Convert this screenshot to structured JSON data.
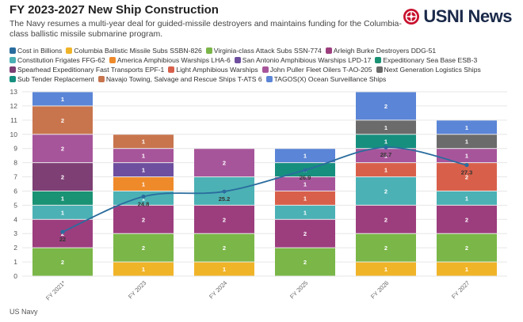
{
  "title": "FY 2023-2027 New Ship Construction",
  "subtitle": "The Navy resumes a multi-year deal for guided-missile destroyers and maintains funding for the Columbia-class ballistic missile submarine program.",
  "logo_text": "USNI News",
  "source": "US Navy",
  "colors": {
    "line": "#2a6c9e",
    "grid": "#e6e6e6",
    "text": "#333333"
  },
  "chart_data": {
    "type": "bar",
    "stacked": true,
    "title": "FY 2023-2027 New Ship Construction",
    "categories": [
      "FY 2021*",
      "FY 2023",
      "FY 2024",
      "FY 2025",
      "FY 2026",
      "FY 2027"
    ],
    "ylim": [
      0,
      13
    ],
    "yticks": [
      0,
      1,
      2,
      3,
      4,
      5,
      6,
      7,
      8,
      9,
      10,
      11,
      12,
      13
    ],
    "grid": true,
    "legend_position": "top",
    "series": [
      {
        "name": "Columbia Ballistic Missile Subs SSBN-826",
        "color": "#f0b429",
        "values": [
          0,
          1,
          1,
          0,
          1,
          1
        ]
      },
      {
        "name": "Virginia-class Attack Subs SSN-774",
        "color": "#7ab648",
        "values": [
          2,
          2,
          2,
          2,
          2,
          2
        ]
      },
      {
        "name": "Arleigh Burke Destroyers DDG-51",
        "color": "#9c3e7e",
        "values": [
          2,
          2,
          2,
          2,
          2,
          2
        ]
      },
      {
        "name": "Constitution Frigates FFG-62",
        "color": "#4bb1b5",
        "values": [
          1,
          1,
          2,
          1,
          2,
          1
        ]
      },
      {
        "name": "Expeditionary Sea Base ESB-3",
        "color": "#1a9274",
        "values": [
          1,
          0,
          0,
          0,
          0,
          0
        ]
      },
      {
        "name": "America Amphibious Warships LHA-6",
        "color": "#ef8a2a",
        "values": [
          0,
          1,
          0,
          0,
          0,
          0
        ]
      },
      {
        "name": "San Antonio Amphibious Warships LPD-17",
        "color": "#6e4f9f",
        "values": [
          0,
          1,
          0,
          0,
          0,
          0
        ]
      },
      {
        "name": "Light Amphibious Warships",
        "color": "#d8604b",
        "values": [
          0,
          0,
          0,
          1,
          1,
          2
        ]
      },
      {
        "name": "Spearhead Expeditionary Fast Transports EPF-1",
        "color": "#7d3f74",
        "values": [
          2,
          0,
          0,
          0,
          0,
          0
        ]
      },
      {
        "name": "John Puller Fleet Oilers T-AO-205",
        "color": "#a7559b",
        "values": [
          2,
          1,
          2,
          1,
          1,
          1
        ]
      },
      {
        "name": "Sub Tender Replacement",
        "color": "#178f7f",
        "values": [
          0,
          0,
          0,
          1,
          1,
          0
        ]
      },
      {
        "name": "Next Generation Logistics Ships",
        "color": "#6b6b6b",
        "values": [
          0,
          0,
          0,
          0,
          1,
          1
        ]
      },
      {
        "name": "Navajo Towing, Salvage and Rescue Ships T-ATS 6",
        "color": "#c8754e",
        "values": [
          2,
          1,
          0,
          0,
          0,
          0
        ]
      },
      {
        "name": "TAGOS(X) Ocean Surveillance Ships",
        "color": "#5b85d6",
        "values": [
          1,
          0,
          0,
          1,
          2,
          1
        ]
      }
    ],
    "line_series": {
      "name": "Cost in Billions",
      "color": "#2a6c9e",
      "values": [
        22,
        24.8,
        25.2,
        26.9,
        28.7,
        27.3
      ],
      "labels": [
        "22",
        "24.8",
        "25.2",
        "26.9",
        "28.7",
        "27.3"
      ],
      "ylim": [
        18.5,
        33.1
      ]
    }
  },
  "legend": [
    {
      "name": "Cost in Billions",
      "color": "#2a6c9e"
    },
    {
      "name": "Columbia Ballistic Missile Subs SSBN-826",
      "color": "#f0b429"
    },
    {
      "name": "Virginia-class Attack Subs SSN-774",
      "color": "#7ab648"
    },
    {
      "name": "Arleigh Burke Destroyers DDG-51",
      "color": "#9c3e7e"
    },
    {
      "name": "Constitution Frigates FFG-62",
      "color": "#4bb1b5"
    },
    {
      "name": "America Amphibious Warships LHA-6",
      "color": "#ef8a2a"
    },
    {
      "name": "San Antonio Amphibious Warships LPD-17",
      "color": "#6e4f9f"
    },
    {
      "name": "Expeditionary Sea Base ESB-3",
      "color": "#1a9274"
    },
    {
      "name": "Spearhead Expeditionary Fast Transports EPF-1",
      "color": "#7d3f74"
    },
    {
      "name": "Light Amphibious Warships",
      "color": "#d8604b"
    },
    {
      "name": "John Puller Fleet Oilers T-AO-205",
      "color": "#a7559b"
    },
    {
      "name": "Next Generation Logistics Ships",
      "color": "#6b6b6b"
    },
    {
      "name": "Sub Tender Replacement",
      "color": "#178f7f"
    },
    {
      "name": "Navajo Towing, Salvage and Rescue Ships T-ATS 6",
      "color": "#c8754e"
    },
    {
      "name": "TAGOS(X) Ocean Surveillance Ships",
      "color": "#5b85d6"
    }
  ]
}
